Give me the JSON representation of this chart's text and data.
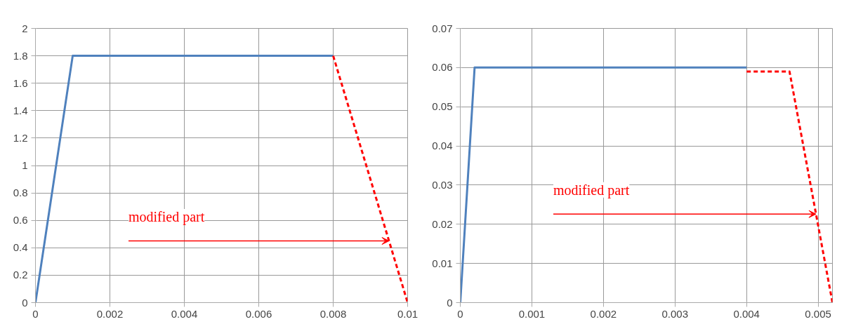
{
  "chart_data": [
    {
      "type": "line",
      "xlim": [
        0,
        0.01
      ],
      "ylim": [
        0,
        2
      ],
      "xticks": [
        0,
        0.002,
        0.004,
        0.006,
        0.008,
        0.01
      ],
      "yticks": [
        0,
        0.2,
        0.4,
        0.6,
        0.8,
        1,
        1.2,
        1.4,
        1.6,
        1.8,
        2
      ],
      "grid": true,
      "marker": "none",
      "series": [
        {
          "x": [
            0,
            0.001,
            0.008
          ],
          "values": [
            0,
            1.8,
            1.8
          ],
          "color": "#4f81bd",
          "line_style": "solid"
        },
        {
          "x": [
            0.008,
            0.01
          ],
          "values": [
            1.8,
            0
          ],
          "color": "#ff0000",
          "line_style": "dashed"
        }
      ],
      "annotations": [
        {
          "text": "modified part",
          "x": 0.0095,
          "y": 0.45
        }
      ]
    },
    {
      "type": "line",
      "xlim": [
        0,
        0.0052
      ],
      "ylim": [
        0,
        0.07
      ],
      "xticks": [
        0,
        0.001,
        0.002,
        0.003,
        0.004,
        0.005
      ],
      "yticks": [
        0,
        0.01,
        0.02,
        0.03,
        0.04,
        0.05,
        0.06,
        0.07
      ],
      "grid": true,
      "marker": "none",
      "series": [
        {
          "x": [
            0,
            0.0002,
            0.004
          ],
          "values": [
            0,
            0.06,
            0.06
          ],
          "color": "#4f81bd",
          "line_style": "solid"
        },
        {
          "x": [
            0.004,
            0.0046,
            0.0052
          ],
          "values": [
            0.059,
            0.059,
            0
          ],
          "color": "#ff0000",
          "line_style": "dashed"
        }
      ],
      "annotations": [
        {
          "text": "modified part",
          "x": 0.00497,
          "y": 0.0226
        }
      ]
    }
  ]
}
